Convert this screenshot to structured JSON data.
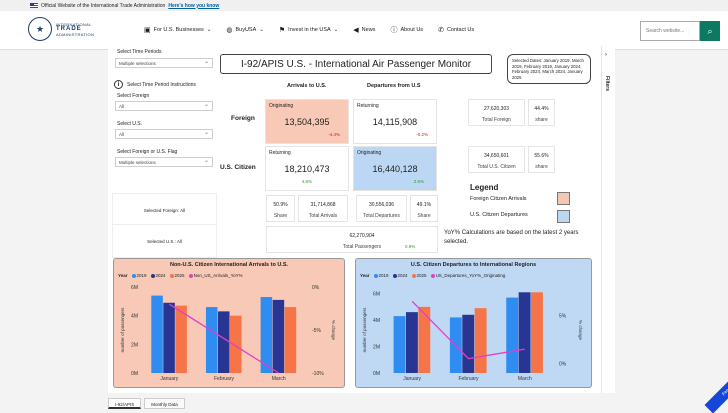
{
  "gov_banner": {
    "text": "Official Website of the International Trade Administration",
    "link": "Here's how you know"
  },
  "logo": {
    "line1": "INTERNATIONAL",
    "line2": "TRADE",
    "line3": "ADMINISTRATION"
  },
  "nav": [
    {
      "label": "For U.S. Businesses",
      "icon": "briefcase-icon"
    },
    {
      "label": "BuyUSA",
      "icon": "globe-icon"
    },
    {
      "label": "Invest in the USA",
      "icon": "flag-icon"
    },
    {
      "label": "News",
      "icon": "megaphone-icon"
    },
    {
      "label": "About Us",
      "icon": "info-icon"
    },
    {
      "label": "Contact Us",
      "icon": "phone-icon"
    }
  ],
  "search": {
    "placeholder": "Search website..."
  },
  "filters_label": "Filters",
  "slicers": {
    "time_periods_label": "Select Time Periods",
    "time_periods_value": "Multiple selections",
    "instructions_label": "Select Time Period Instructions",
    "foreign_label": "Select Foreign",
    "foreign_value": "All",
    "us_label": "Select U.S.",
    "us_value": "All",
    "flag_label": "Select Foreign or U.S. Flag",
    "flag_value": "Multiple selections"
  },
  "report": {
    "title": "I-92/APIS U.S. - International Air Passenger Monitor",
    "selected_dates": "Selected Dates: January 2019, March 2019, February 2019, January 2024, February 2024, March 2024, January 2025",
    "col_arrivals": "Arrivals to U.S.",
    "col_departures": "Departures from U.S",
    "row_foreign": "Foreign",
    "row_us": "U.S. Citizen"
  },
  "cards": {
    "foreign_arrivals": {
      "label": "Originating",
      "value": "13,504,395",
      "pct": "-4.4%"
    },
    "foreign_departures": {
      "label": "Returning",
      "value": "14,115,908",
      "pct": "-0.2%"
    },
    "us_arrivals": {
      "label": "Returning",
      "value": "18,210,473",
      "pct": "4.8%"
    },
    "us_departures": {
      "label": "Originating",
      "value": "16,440,128",
      "pct": "2.5%"
    }
  },
  "totals": {
    "total_foreign": {
      "value": "27,620,303",
      "label": "Total Foreign"
    },
    "foreign_share": {
      "value": "44.4%",
      "label": "share"
    },
    "total_us": {
      "value": "34,650,601",
      "label": "Total U.S. Citizen"
    },
    "us_share": {
      "value": "55.6%",
      "label": "share"
    },
    "arrivals_share": {
      "value": "50.9%",
      "label": "Share"
    },
    "total_arrivals": {
      "value": "31,714,868",
      "label": "Total Arrivals"
    },
    "total_departures": {
      "value": "30,556,036",
      "label": "Total Departures"
    },
    "departures_share": {
      "value": "49.1%",
      "label": "Share"
    },
    "total_passengers": {
      "value": "62,270,904",
      "label": "Total Passengers",
      "pct": "0.9%"
    }
  },
  "selection_boxes": {
    "foreign": "Selected Foreign: All",
    "us": "Selected U.S.: All"
  },
  "legend": {
    "title": "Legend",
    "arrivals": "Foreign Citizen Arrivals",
    "departures": "U.S. Citizen Departures",
    "arrivals_color": "#f4c6b4",
    "departures_color": "#bcd7f3"
  },
  "note": "YoY% Calculations are based on the latest 2 years selected.",
  "tabs": [
    "I-92/APIS",
    "Monthly Data"
  ],
  "feedback": "Feedback",
  "chart_data": [
    {
      "type": "bar",
      "title": "Non-U.S. Citizen International Arrivals to U.S.",
      "legend_title": "Year",
      "categories": [
        "January",
        "February",
        "March"
      ],
      "series": [
        {
          "name": "2019",
          "color": "#2f8cf0",
          "values": [
            5.4,
            4.6,
            5.3
          ]
        },
        {
          "name": "2024",
          "color": "#283593",
          "values": [
            4.9,
            4.3,
            5.1
          ]
        },
        {
          "name": "2025",
          "color": "#f57548",
          "values": [
            4.7,
            4.0,
            4.6
          ]
        },
        {
          "name": "Non_US_Arrivals_YoY%",
          "color": "#e040c8",
          "values": [
            -2.0,
            -6.0,
            -10.0
          ]
        }
      ],
      "ylabel": "number of passengers",
      "ylabel_right": "% change",
      "y_ticks": [
        "0M",
        "2M",
        "4M",
        "6M"
      ],
      "y_right_ticks": [
        "0%",
        "-5%",
        "-10%"
      ],
      "ylim": [
        0,
        6
      ],
      "y_right_lim": [
        -10,
        0
      ],
      "background": "#f7c9b6"
    },
    {
      "type": "bar",
      "title": "U.S. Citizen Departures to International Regions",
      "legend_title": "Year",
      "categories": [
        "January",
        "February",
        "March"
      ],
      "series": [
        {
          "name": "2019",
          "color": "#2f8cf0",
          "values": [
            4.3,
            4.2,
            5.7
          ]
        },
        {
          "name": "2024",
          "color": "#283593",
          "values": [
            4.6,
            4.4,
            6.1
          ]
        },
        {
          "name": "2025",
          "color": "#f57548",
          "values": [
            5.0,
            4.9,
            6.1
          ]
        },
        {
          "name": "US_Departures_YoY%_Originating",
          "color": "#e040c8",
          "values": [
            6.5,
            0.5,
            1.5
          ]
        }
      ],
      "ylabel": "number of passengers",
      "ylabel_right": "% change",
      "y_ticks": [
        "0M",
        "2M",
        "4M",
        "6M"
      ],
      "y_right_ticks": [
        "0%",
        "5%"
      ],
      "ylim": [
        0,
        6.5
      ],
      "y_right_lim": [
        -1,
        8
      ],
      "background": "#bfd9f5"
    }
  ]
}
